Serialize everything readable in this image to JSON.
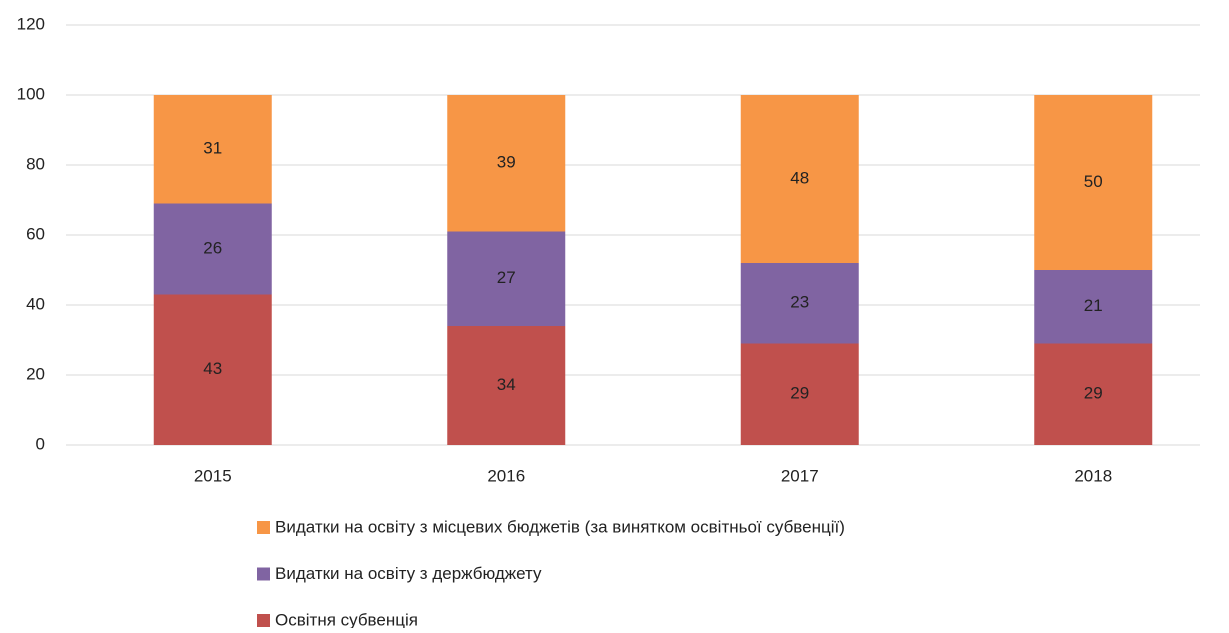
{
  "chart_data": {
    "type": "stacked_bar",
    "categories": [
      "2015",
      "2016",
      "2017",
      "2018"
    ],
    "series": [
      {
        "name": "Освітня субвенція",
        "color": "#c0504d",
        "values": [
          43,
          34,
          29,
          29
        ]
      },
      {
        "name": "Видатки на освіту з держбюджету",
        "color": "#8064a2",
        "values": [
          26,
          27,
          23,
          21
        ]
      },
      {
        "name": "Видатки на освіту з місцевих бюджетів (за винятком освітньої субвенції)",
        "color": "#f79646",
        "values": [
          31,
          39,
          48,
          50
        ]
      }
    ],
    "ylim": [
      0,
      120
    ],
    "yticks": [
      0,
      20,
      40,
      60,
      80,
      100,
      120
    ],
    "grid": true,
    "legend": "bottom"
  }
}
